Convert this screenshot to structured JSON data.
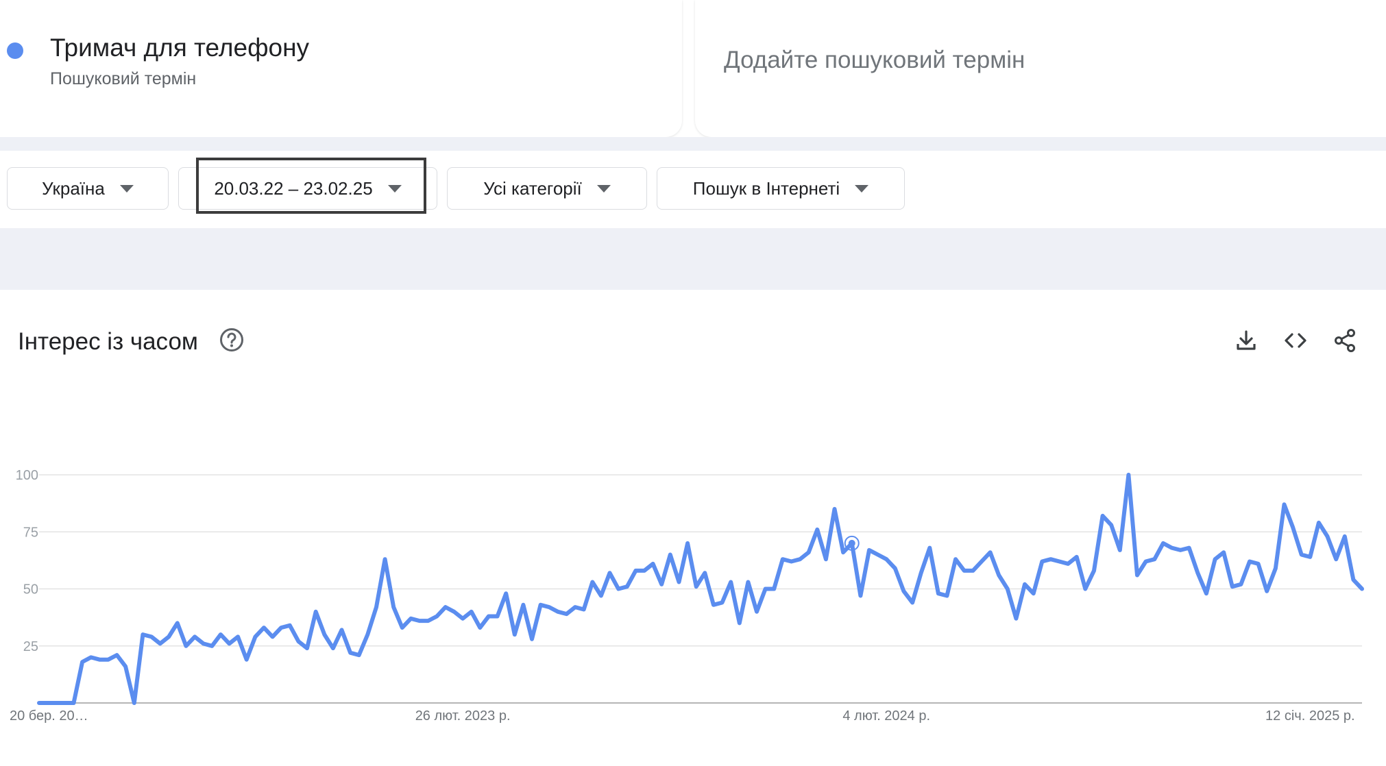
{
  "term": {
    "title": "Тримач для телефону",
    "subtitle": "Пошуковий термін",
    "color": "#5b8def"
  },
  "add_term": {
    "placeholder": "Додайте пошуковий термін"
  },
  "filters": {
    "geo": "Україна",
    "date_range": "20.03.22 – 23.02.25",
    "category": "Усі категорії",
    "property": "Пошук в Інтернеті"
  },
  "chart_header": {
    "title": "Інтерес із часом",
    "icons": [
      "help-icon",
      "download-icon",
      "embed-icon",
      "share-icon"
    ]
  },
  "chart_data": {
    "type": "line",
    "title": "Інтерес із часом",
    "ylim": [
      0,
      100
    ],
    "y_ticks": [
      "100",
      "75",
      "50",
      "25"
    ],
    "x_tick_labels": [
      "20 бер. 20…",
      "26 лют. 2023 р.",
      "4 лют. 2024 р.",
      "12 січ. 2025 р."
    ],
    "x_tick_index": [
      0,
      49,
      98,
      147
    ],
    "grid": true,
    "line_color": "#5b8def",
    "highlighted_point_index": 94,
    "series": [
      {
        "values": [
          0,
          0,
          0,
          0,
          0,
          18,
          20,
          19,
          19,
          21,
          16,
          0,
          30,
          29,
          26,
          29,
          35,
          25,
          29,
          26,
          25,
          30,
          26,
          29,
          19,
          29,
          33,
          29,
          33,
          34,
          27,
          24,
          40,
          30,
          24,
          32,
          22,
          21,
          30,
          42,
          63,
          42,
          33,
          37,
          36,
          36,
          38,
          42,
          40,
          37,
          40,
          33,
          38,
          38,
          48,
          30,
          43,
          28,
          43,
          42,
          40,
          39,
          42,
          41,
          53,
          47,
          57,
          50,
          51,
          58,
          58,
          61,
          52,
          65,
          53,
          70,
          51,
          57,
          43,
          44,
          53,
          35,
          53,
          40,
          50,
          50,
          63,
          62,
          63,
          66,
          76,
          63,
          85,
          66,
          70,
          47,
          67,
          65,
          63,
          59,
          49,
          44,
          57,
          68,
          48,
          47,
          63,
          58,
          58,
          62,
          66,
          56,
          50,
          37,
          52,
          48,
          62,
          63,
          62,
          61,
          64,
          50,
          58,
          82,
          78,
          67,
          100,
          56,
          62,
          63,
          70,
          68,
          67,
          68,
          57,
          48,
          63,
          66,
          51,
          52,
          62,
          61,
          49,
          59,
          87,
          77,
          65,
          64,
          79,
          73,
          63,
          73,
          54,
          50
        ]
      }
    ]
  }
}
